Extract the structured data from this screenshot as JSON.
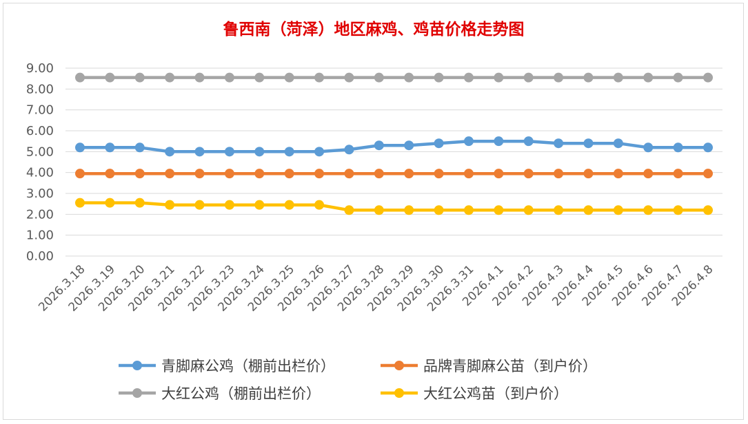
{
  "chart_data": {
    "type": "line",
    "title": "鲁西南（菏泽）地区麻鸡、鸡苗价格走势图",
    "xlabel": "",
    "ylabel": "",
    "ylim": [
      0,
      9
    ],
    "yticks": [
      "0.00",
      "1.00",
      "2.00",
      "3.00",
      "4.00",
      "5.00",
      "6.00",
      "7.00",
      "8.00",
      "9.00"
    ],
    "grid": true,
    "legend_position": "bottom",
    "categories": [
      "2026.3.18",
      "2026.3.19",
      "2026.3.20",
      "2026.3.21",
      "2026.3.22",
      "2026.3.23",
      "2026.3.24",
      "2026.3.25",
      "2026.3.26",
      "2026.3.27",
      "2026.3.28",
      "2026.3.29",
      "2026.3.30",
      "2026.3.31",
      "2026.4.1",
      "2026.4.2",
      "2026.4.3",
      "2026.4.4",
      "2026.4.5",
      "2026.4.6",
      "2026.4.7",
      "2026.4.8"
    ],
    "series": [
      {
        "name": "青脚麻公鸡（棚前出栏价）",
        "color": "#5b9bd5",
        "values": [
          5.2,
          5.2,
          5.2,
          5.0,
          5.0,
          5.0,
          5.0,
          5.0,
          5.0,
          5.1,
          5.3,
          5.3,
          5.4,
          5.5,
          5.5,
          5.5,
          5.4,
          5.4,
          5.4,
          5.2,
          5.2,
          5.2
        ]
      },
      {
        "name": "品牌青脚麻公苗（到户价）",
        "color": "#ed7d31",
        "values": [
          3.95,
          3.95,
          3.95,
          3.95,
          3.95,
          3.95,
          3.95,
          3.95,
          3.95,
          3.95,
          3.95,
          3.95,
          3.95,
          3.95,
          3.95,
          3.95,
          3.95,
          3.95,
          3.95,
          3.95,
          3.95,
          3.95
        ]
      },
      {
        "name": "大红公鸡（棚前出栏价）",
        "color": "#a5a5a5",
        "values": [
          8.55,
          8.55,
          8.55,
          8.55,
          8.55,
          8.55,
          8.55,
          8.55,
          8.55,
          8.55,
          8.55,
          8.55,
          8.55,
          8.55,
          8.55,
          8.55,
          8.55,
          8.55,
          8.55,
          8.55,
          8.55,
          8.55
        ]
      },
      {
        "name": "大红公鸡苗（到户价）",
        "color": "#ffc000",
        "values": [
          2.55,
          2.55,
          2.55,
          2.45,
          2.45,
          2.45,
          2.45,
          2.45,
          2.45,
          2.2,
          2.2,
          2.2,
          2.2,
          2.2,
          2.2,
          2.2,
          2.2,
          2.2,
          2.2,
          2.2,
          2.2,
          2.2
        ]
      }
    ]
  }
}
